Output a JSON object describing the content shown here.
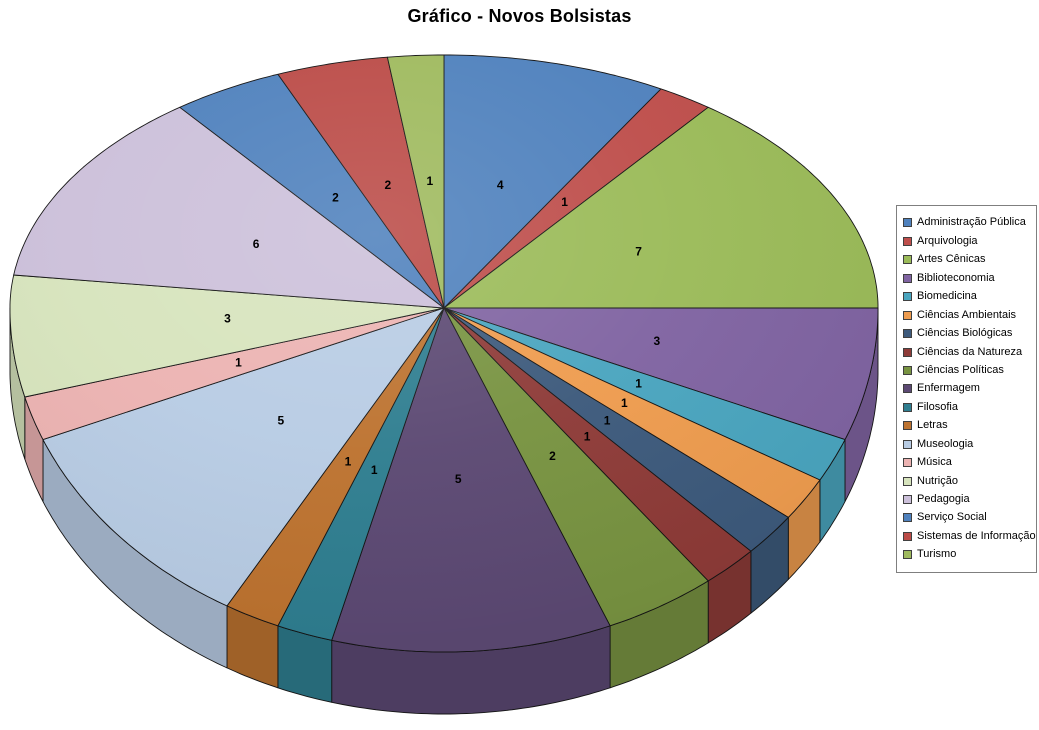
{
  "chart_data": {
    "type": "pie",
    "style": "3d-perspective",
    "title": "Gráfico - Novos Bolsistas",
    "legend_position": "right",
    "data_labels": "value",
    "start_angle_deg": 0,
    "direction": "clockwise",
    "total": 48,
    "series": [
      {
        "name": "Administração Pública",
        "value": 4,
        "color": "#4F81BD"
      },
      {
        "name": "Arquivologia",
        "value": 1,
        "color": "#BE4E4B"
      },
      {
        "name": "Artes Cênicas",
        "value": 7,
        "color": "#9BBB59"
      },
      {
        "name": "Biblioteconomia",
        "value": 3,
        "color": "#8064A2"
      },
      {
        "name": "Biomedicina",
        "value": 1,
        "color": "#4AA5BF"
      },
      {
        "name": "Ciências Ambientais",
        "value": 1,
        "color": "#EE9C4F"
      },
      {
        "name": "Ciências Biológicas",
        "value": 1,
        "color": "#3D5A7C"
      },
      {
        "name": "Ciências da Natureza",
        "value": 1,
        "color": "#8E3B38"
      },
      {
        "name": "Ciências Políticas",
        "value": 2,
        "color": "#789341"
      },
      {
        "name": "Enfermagem",
        "value": 5,
        "color": "#5C4973"
      },
      {
        "name": "Filosofia",
        "value": 1,
        "color": "#2F7E90"
      },
      {
        "name": "Letras",
        "value": 1,
        "color": "#BD7330"
      },
      {
        "name": "Museologia",
        "value": 5,
        "color": "#B8CCE4"
      },
      {
        "name": "Música",
        "value": 1,
        "color": "#ECB3B2"
      },
      {
        "name": "Nutrição",
        "value": 3,
        "color": "#D7E4BD"
      },
      {
        "name": "Pedagogia",
        "value": 6,
        "color": "#CCC0DA"
      },
      {
        "name": "Serviço Social",
        "value": 2,
        "color": "#4F81BD"
      },
      {
        "name": "Sistemas de Informação",
        "value": 2,
        "color": "#BB4B47"
      },
      {
        "name": "Turismo",
        "value": 1,
        "color": "#9FBA5E"
      }
    ]
  }
}
